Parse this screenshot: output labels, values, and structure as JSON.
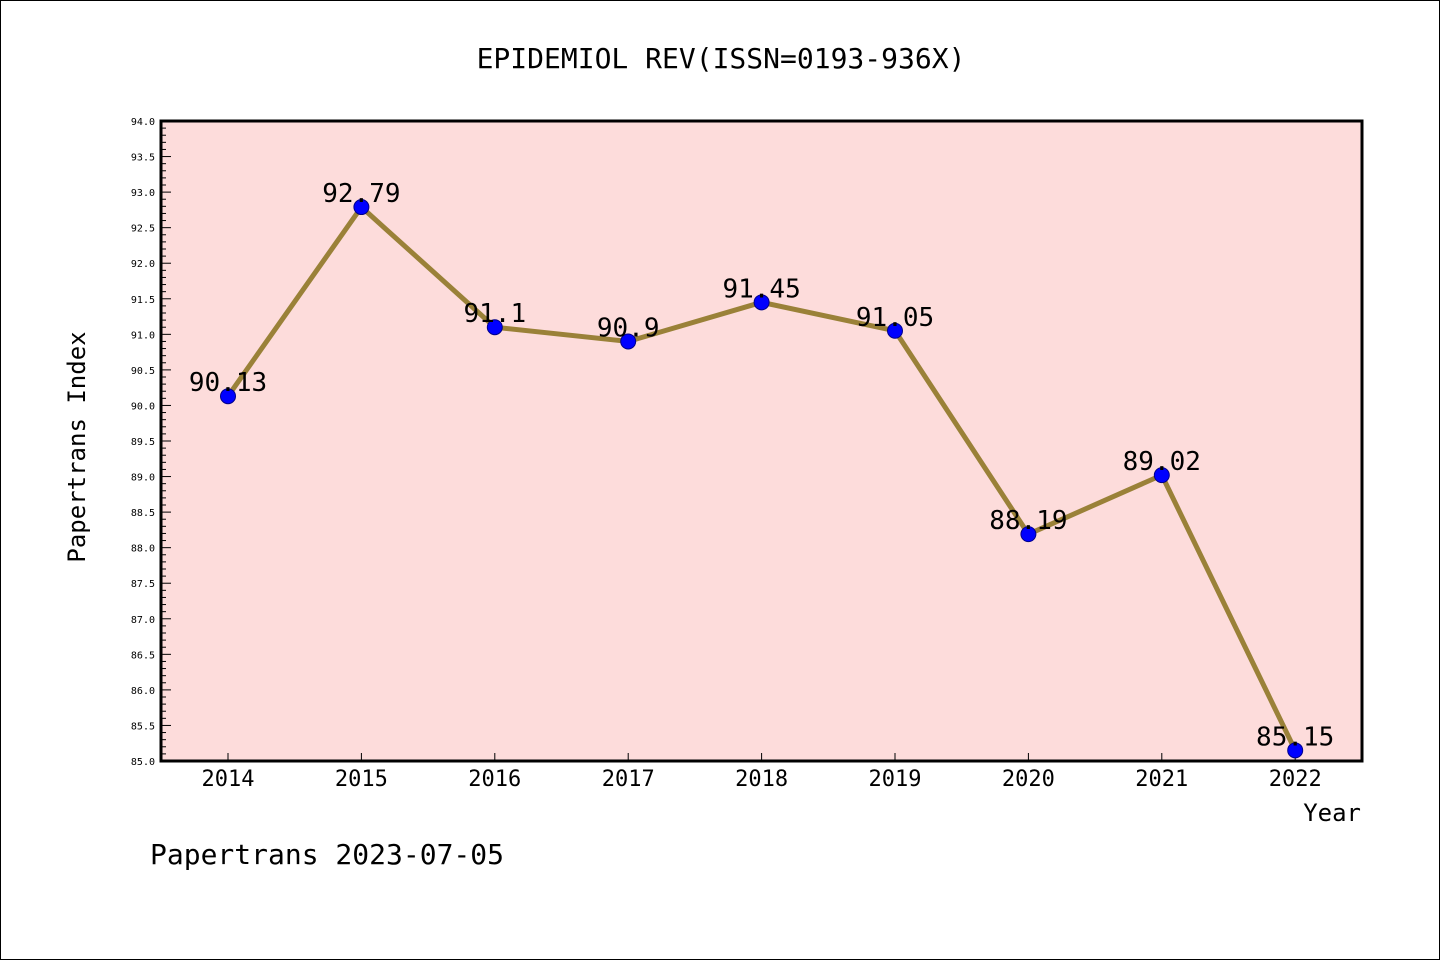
{
  "chart_data": {
    "type": "line",
    "title": "EPIDEMIOL REV(ISSN=0193-936X)",
    "xlabel": "Year",
    "ylabel": "Papertrans Index",
    "categories": [
      "2014",
      "2015",
      "2016",
      "2017",
      "2018",
      "2019",
      "2020",
      "2021",
      "2022"
    ],
    "series": [
      {
        "values": [
          90.13,
          92.79,
          91.1,
          90.9,
          91.45,
          91.05,
          88.19,
          89.02,
          85.15
        ],
        "data_labels": [
          "90.13",
          "92.79",
          "91.1",
          "90.9",
          "91.45",
          "91.05",
          "88.19",
          "89.02",
          "85.15"
        ]
      }
    ],
    "ylim": [
      85.0,
      94.0
    ],
    "yticks": [
      "85.0",
      "85.5",
      "86.0",
      "86.5",
      "87.0",
      "87.5",
      "88.0",
      "88.5",
      "89.0",
      "89.5",
      "90.0",
      "90.5",
      "91.0",
      "91.5",
      "92.0",
      "92.5",
      "93.0",
      "93.5",
      "94.0"
    ],
    "grid": false,
    "colors": {
      "plot_background": "#fddcdb",
      "line": "#9a8138",
      "marker": "#0000ff"
    }
  },
  "footer": {
    "text": "Papertrans 2023-07-05"
  }
}
